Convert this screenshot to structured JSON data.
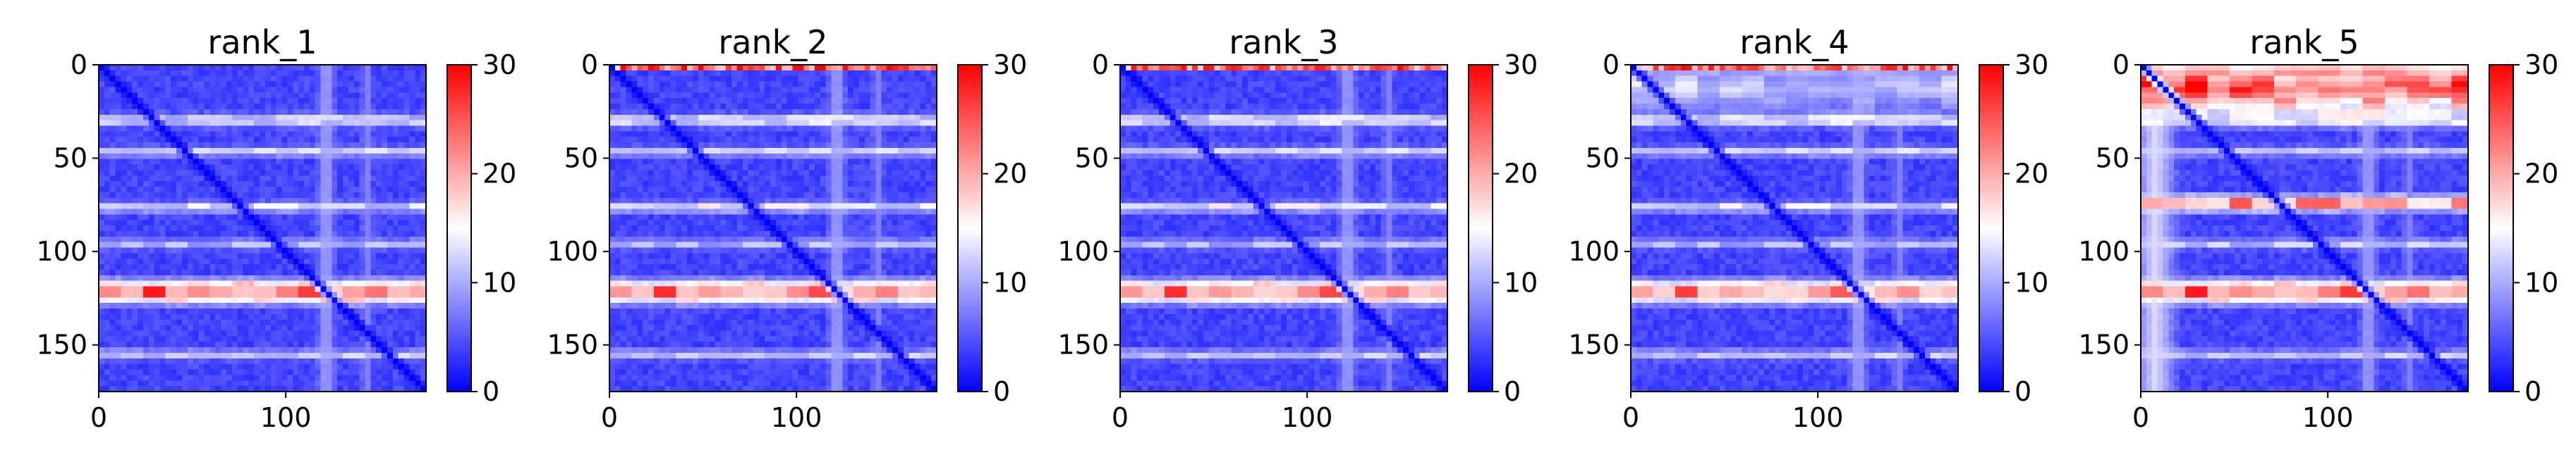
{
  "chart_data": [
    {
      "type": "heatmap",
      "title": "rank_1",
      "xlabel": "",
      "ylabel": "",
      "xlim": [
        0,
        175
      ],
      "ylim": [
        175,
        0
      ],
      "x_ticks": [
        0,
        100
      ],
      "y_ticks": [
        0,
        50,
        100,
        150
      ],
      "colorbar": {
        "range": [
          0,
          30
        ],
        "ticks": [
          0,
          10,
          20,
          30
        ],
        "colormap": "bwr"
      },
      "features": {
        "baseline_value": 4,
        "diagonal_value": 0,
        "bands_horizontal": [
          {
            "center": 30,
            "width": 5,
            "value": 14
          },
          {
            "center": 47,
            "width": 4,
            "value": 13
          },
          {
            "center": 77,
            "width": 4,
            "value": 14
          },
          {
            "center": 97,
            "width": 4,
            "value": 11
          },
          {
            "center": 123,
            "width": 9,
            "value": 27
          },
          {
            "center": 157,
            "width": 4,
            "value": 12
          }
        ],
        "bands_vertical": [
          {
            "center": 123,
            "width": 6,
            "value": 10
          },
          {
            "center": 145,
            "width": 4,
            "value": 8
          }
        ],
        "top_edge": null
      }
    },
    {
      "type": "heatmap",
      "title": "rank_2",
      "xlabel": "",
      "ylabel": "",
      "xlim": [
        0,
        175
      ],
      "ylim": [
        175,
        0
      ],
      "x_ticks": [
        0,
        100
      ],
      "y_ticks": [
        0,
        50,
        100,
        150
      ],
      "colorbar": {
        "range": [
          0,
          30
        ],
        "ticks": [
          0,
          10,
          20,
          30
        ],
        "colormap": "bwr"
      },
      "features": {
        "baseline_value": 4,
        "diagonal_value": 0,
        "bands_horizontal": [
          {
            "center": 30,
            "width": 5,
            "value": 15
          },
          {
            "center": 47,
            "width": 4,
            "value": 13
          },
          {
            "center": 77,
            "width": 4,
            "value": 15
          },
          {
            "center": 97,
            "width": 4,
            "value": 11
          },
          {
            "center": 123,
            "width": 9,
            "value": 26
          },
          {
            "center": 157,
            "width": 4,
            "value": 12
          }
        ],
        "bands_vertical": [
          {
            "center": 123,
            "width": 6,
            "value": 10
          },
          {
            "center": 145,
            "width": 4,
            "value": 8
          }
        ],
        "top_edge": {
          "rows": 2,
          "value": 26
        }
      }
    },
    {
      "type": "heatmap",
      "title": "rank_3",
      "xlabel": "",
      "ylabel": "",
      "xlim": [
        0,
        175
      ],
      "ylim": [
        175,
        0
      ],
      "x_ticks": [
        0,
        100
      ],
      "y_ticks": [
        0,
        50,
        100,
        150
      ],
      "colorbar": {
        "range": [
          0,
          30
        ],
        "ticks": [
          0,
          10,
          20,
          30
        ],
        "colormap": "bwr"
      },
      "features": {
        "baseline_value": 4,
        "diagonal_value": 0,
        "bands_horizontal": [
          {
            "center": 30,
            "width": 5,
            "value": 15
          },
          {
            "center": 47,
            "width": 4,
            "value": 13
          },
          {
            "center": 77,
            "width": 4,
            "value": 15
          },
          {
            "center": 97,
            "width": 4,
            "value": 11
          },
          {
            "center": 123,
            "width": 9,
            "value": 26
          },
          {
            "center": 157,
            "width": 4,
            "value": 12
          }
        ],
        "bands_vertical": [
          {
            "center": 123,
            "width": 6,
            "value": 10
          },
          {
            "center": 145,
            "width": 4,
            "value": 8
          }
        ],
        "top_edge": {
          "rows": 2,
          "value": 25
        }
      }
    },
    {
      "type": "heatmap",
      "title": "rank_4",
      "xlabel": "",
      "ylabel": "",
      "xlim": [
        0,
        175
      ],
      "ylim": [
        175,
        0
      ],
      "x_ticks": [
        0,
        100
      ],
      "y_ticks": [
        0,
        50,
        100,
        150
      ],
      "colorbar": {
        "range": [
          0,
          30
        ],
        "ticks": [
          0,
          10,
          20,
          30
        ],
        "colormap": "bwr"
      },
      "features": {
        "baseline_value": 4,
        "diagonal_value": 0,
        "bands_horizontal": [
          {
            "center": 12,
            "width": 20,
            "value": 12
          },
          {
            "center": 30,
            "width": 5,
            "value": 15
          },
          {
            "center": 47,
            "width": 4,
            "value": 13
          },
          {
            "center": 77,
            "width": 4,
            "value": 14
          },
          {
            "center": 97,
            "width": 4,
            "value": 11
          },
          {
            "center": 123,
            "width": 9,
            "value": 25
          },
          {
            "center": 157,
            "width": 4,
            "value": 12
          }
        ],
        "bands_vertical": [
          {
            "center": 123,
            "width": 6,
            "value": 10
          },
          {
            "center": 145,
            "width": 4,
            "value": 8
          }
        ],
        "top_edge": {
          "rows": 3,
          "value": 25
        }
      }
    },
    {
      "type": "heatmap",
      "title": "rank_5",
      "xlabel": "",
      "ylabel": "",
      "xlim": [
        0,
        175
      ],
      "ylim": [
        175,
        0
      ],
      "x_ticks": [
        0,
        100
      ],
      "y_ticks": [
        0,
        50,
        100,
        150
      ],
      "colorbar": {
        "range": [
          0,
          30
        ],
        "ticks": [
          0,
          10,
          20,
          30
        ],
        "colormap": "bwr"
      },
      "features": {
        "baseline_value": 4,
        "diagonal_value": 0,
        "bands_horizontal": [
          {
            "center": 12,
            "width": 24,
            "value": 26
          },
          {
            "center": 30,
            "width": 5,
            "value": 15
          },
          {
            "center": 47,
            "width": 4,
            "value": 12
          },
          {
            "center": 75,
            "width": 6,
            "value": 26
          },
          {
            "center": 97,
            "width": 4,
            "value": 12
          },
          {
            "center": 123,
            "width": 9,
            "value": 27
          },
          {
            "center": 157,
            "width": 4,
            "value": 12
          }
        ],
        "bands_vertical": [
          {
            "center": 8,
            "width": 14,
            "value": 13
          },
          {
            "center": 123,
            "width": 6,
            "value": 10
          },
          {
            "center": 145,
            "width": 4,
            "value": 8
          }
        ],
        "top_edge": null
      }
    }
  ]
}
